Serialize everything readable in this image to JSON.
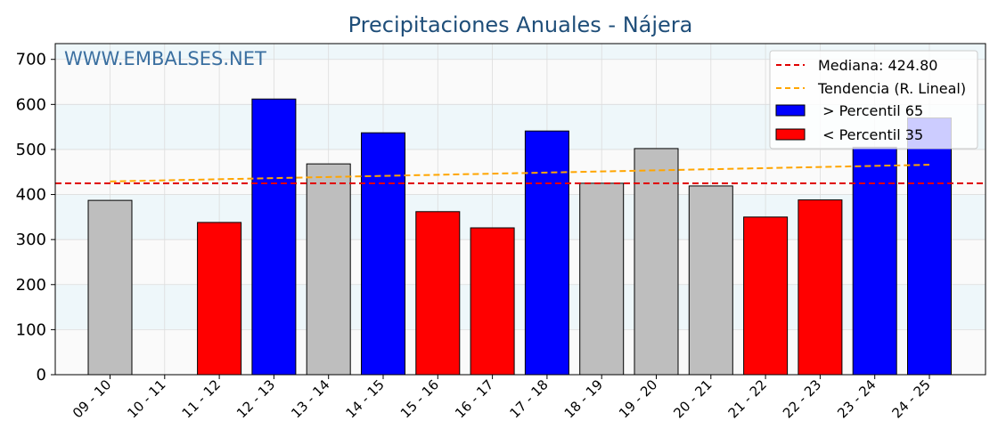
{
  "chart_data": {
    "type": "bar",
    "title": "Precipitaciones Anuales - Nájera",
    "watermark": "WWW.EMBALSES.NET",
    "categories": [
      "09 - 10",
      "10 - 11",
      "11 - 12",
      "12 - 13",
      "13 - 14",
      "14 - 15",
      "15 - 16",
      "16 - 17",
      "17 - 18",
      "18 - 19",
      "19 - 20",
      "20 - 21",
      "21 - 22",
      "22 - 23",
      "23 - 24",
      "24 - 25"
    ],
    "values": [
      387,
      0,
      338,
      612,
      468,
      537,
      362,
      326,
      541,
      425,
      502,
      419,
      350,
      388,
      505,
      570
    ],
    "bar_classes": [
      "normal",
      "normal",
      "low",
      "high",
      "normal",
      "high",
      "low",
      "low",
      "high",
      "normal",
      "normal",
      "normal",
      "low",
      "low",
      "high",
      "high"
    ],
    "ylim": [
      0,
      735
    ],
    "yticks": [
      0,
      100,
      200,
      300,
      400,
      500,
      600,
      700
    ],
    "median": 424.8,
    "trend": [
      429,
      466
    ],
    "legend": {
      "median": "Mediana: 424.80",
      "trend": "Tendencia (R. Lineal)",
      "high": " > Percentil 65",
      "low": " < Percentil 35"
    },
    "colors": {
      "high": "#0000ff",
      "low": "#ff0000",
      "normal": "#bebebe",
      "median_line": "#e00000",
      "trend_line": "#ffa500",
      "title": "#1f4e79",
      "watermark": "#3a6fa0",
      "band": "#eef7fa",
      "plot_bg": "#fafafa"
    }
  }
}
